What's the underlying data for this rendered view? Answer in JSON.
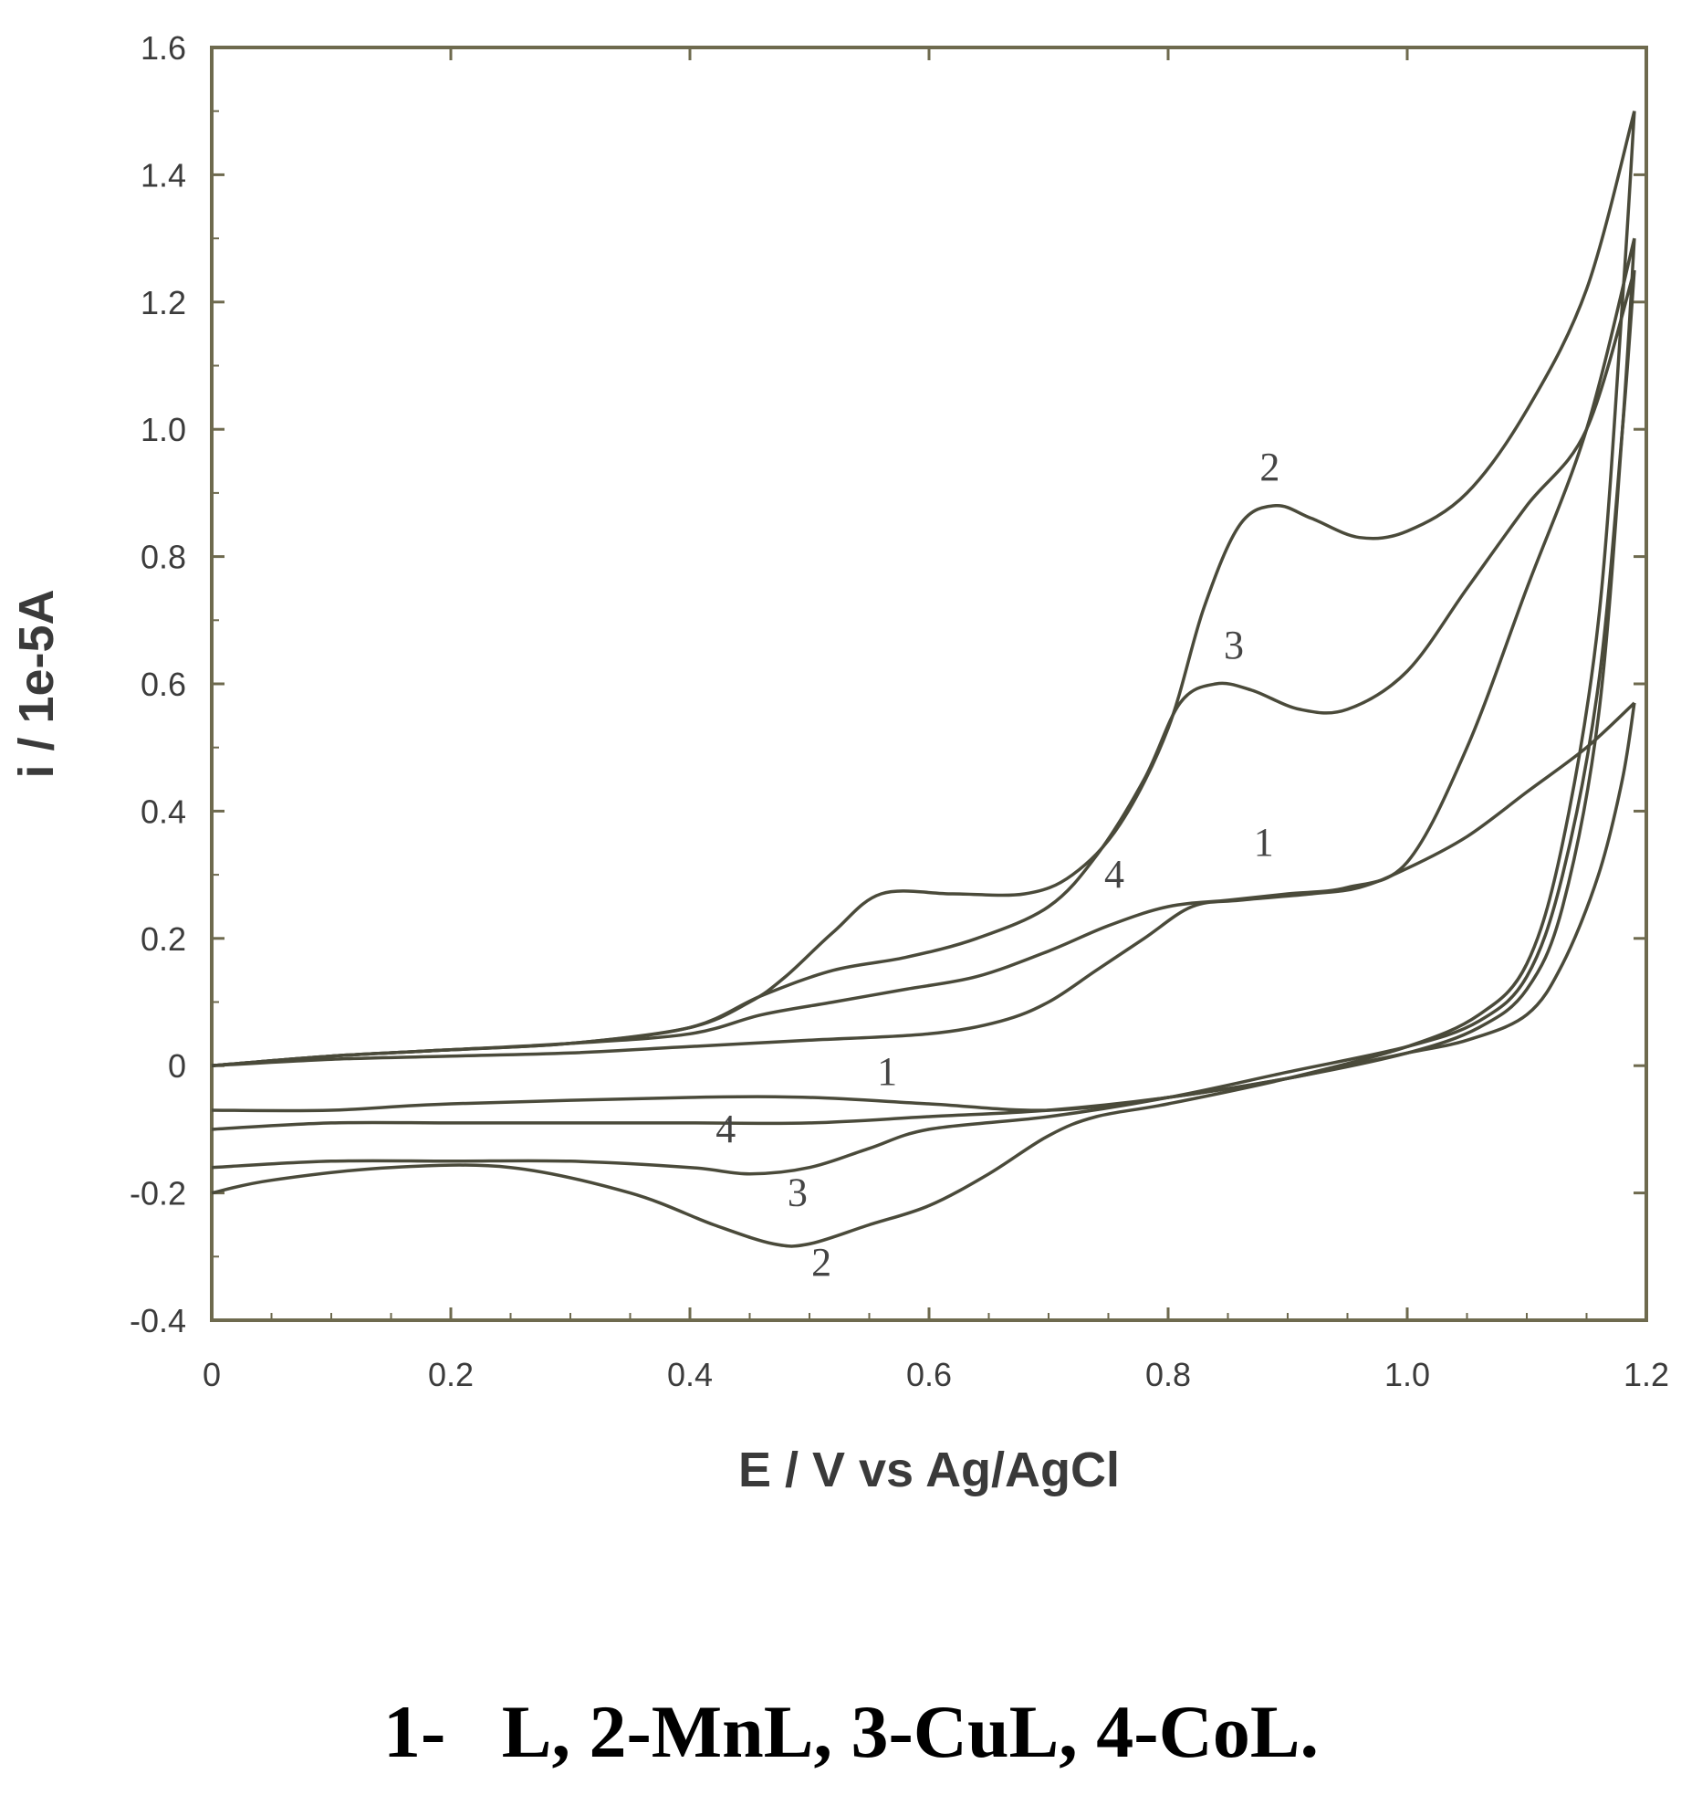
{
  "chart_data": {
    "type": "line",
    "title": "",
    "xlabel": "E  / V  vs Ag/AgCl",
    "ylabel": "i  / 1e-5A",
    "xlim": [
      0,
      1.2
    ],
    "ylim": [
      -0.4,
      1.6
    ],
    "xticks": [
      0,
      0.2,
      0.4,
      0.6,
      0.8,
      1.0,
      1.2
    ],
    "xtick_labels": [
      "0",
      "0.2",
      "0.4",
      "0.6",
      "0.8",
      "1.0",
      "1.2"
    ],
    "yticks": [
      -0.4,
      -0.2,
      0,
      0.2,
      0.4,
      0.6,
      0.8,
      1.0,
      1.2,
      1.4,
      1.6
    ],
    "ytick_labels": [
      "-0.4",
      "-0.2",
      "0",
      "0.2",
      "0.4",
      "0.6",
      "0.8",
      "1.0",
      "1.2",
      "1.4",
      "1.6"
    ],
    "grid": false,
    "line_color": "#4a4a3a",
    "frame_color": "#6e6a4e",
    "series": [
      {
        "name": "1",
        "forward": [
          [
            0,
            0
          ],
          [
            0.1,
            0.01
          ],
          [
            0.2,
            0.015
          ],
          [
            0.3,
            0.02
          ],
          [
            0.4,
            0.03
          ],
          [
            0.5,
            0.04
          ],
          [
            0.6,
            0.05
          ],
          [
            0.66,
            0.07
          ],
          [
            0.7,
            0.1
          ],
          [
            0.74,
            0.15
          ],
          [
            0.78,
            0.2
          ],
          [
            0.82,
            0.25
          ],
          [
            0.86,
            0.26
          ],
          [
            0.92,
            0.27
          ],
          [
            0.96,
            0.28
          ],
          [
            1.0,
            0.31
          ],
          [
            1.05,
            0.36
          ],
          [
            1.1,
            0.43
          ],
          [
            1.15,
            0.5
          ],
          [
            1.19,
            0.57
          ]
        ],
        "reverse": [
          [
            1.19,
            0.57
          ],
          [
            1.18,
            0.45
          ],
          [
            1.16,
            0.3
          ],
          [
            1.13,
            0.16
          ],
          [
            1.1,
            0.08
          ],
          [
            1.05,
            0.04
          ],
          [
            1.0,
            0.02
          ],
          [
            0.95,
            0
          ],
          [
            0.9,
            -0.02
          ],
          [
            0.8,
            -0.05
          ],
          [
            0.7,
            -0.07
          ],
          [
            0.6,
            -0.06
          ],
          [
            0.5,
            -0.05
          ],
          [
            0.4,
            -0.05
          ],
          [
            0.2,
            -0.06
          ],
          [
            0.1,
            -0.07
          ],
          [
            0,
            -0.07
          ]
        ]
      },
      {
        "name": "2",
        "forward": [
          [
            0,
            0
          ],
          [
            0.1,
            0.015
          ],
          [
            0.2,
            0.025
          ],
          [
            0.3,
            0.035
          ],
          [
            0.4,
            0.06
          ],
          [
            0.45,
            0.1
          ],
          [
            0.48,
            0.14
          ],
          [
            0.52,
            0.21
          ],
          [
            0.56,
            0.27
          ],
          [
            0.62,
            0.27
          ],
          [
            0.68,
            0.27
          ],
          [
            0.72,
            0.3
          ],
          [
            0.76,
            0.38
          ],
          [
            0.8,
            0.53
          ],
          [
            0.83,
            0.72
          ],
          [
            0.86,
            0.85
          ],
          [
            0.89,
            0.88
          ],
          [
            0.92,
            0.86
          ],
          [
            0.96,
            0.83
          ],
          [
            1.0,
            0.84
          ],
          [
            1.05,
            0.9
          ],
          [
            1.1,
            1.03
          ],
          [
            1.15,
            1.22
          ],
          [
            1.19,
            1.5
          ]
        ],
        "reverse": [
          [
            1.19,
            1.5
          ],
          [
            1.18,
            1.2
          ],
          [
            1.16,
            0.7
          ],
          [
            1.13,
            0.35
          ],
          [
            1.1,
            0.16
          ],
          [
            1.06,
            0.08
          ],
          [
            1.0,
            0.03
          ],
          [
            0.9,
            -0.02
          ],
          [
            0.8,
            -0.06
          ],
          [
            0.74,
            -0.08
          ],
          [
            0.7,
            -0.11
          ],
          [
            0.65,
            -0.17
          ],
          [
            0.6,
            -0.22
          ],
          [
            0.55,
            -0.25
          ],
          [
            0.5,
            -0.28
          ],
          [
            0.47,
            -0.28
          ],
          [
            0.42,
            -0.25
          ],
          [
            0.35,
            -0.2
          ],
          [
            0.25,
            -0.16
          ],
          [
            0.15,
            -0.16
          ],
          [
            0.05,
            -0.18
          ],
          [
            0,
            -0.2
          ]
        ]
      },
      {
        "name": "3",
        "forward": [
          [
            0,
            0
          ],
          [
            0.1,
            0.015
          ],
          [
            0.2,
            0.025
          ],
          [
            0.3,
            0.035
          ],
          [
            0.4,
            0.06
          ],
          [
            0.46,
            0.11
          ],
          [
            0.52,
            0.15
          ],
          [
            0.58,
            0.17
          ],
          [
            0.64,
            0.2
          ],
          [
            0.7,
            0.25
          ],
          [
            0.74,
            0.33
          ],
          [
            0.78,
            0.45
          ],
          [
            0.81,
            0.57
          ],
          [
            0.84,
            0.6
          ],
          [
            0.87,
            0.59
          ],
          [
            0.91,
            0.56
          ],
          [
            0.95,
            0.56
          ],
          [
            1.0,
            0.62
          ],
          [
            1.05,
            0.75
          ],
          [
            1.1,
            0.88
          ],
          [
            1.15,
            1.0
          ],
          [
            1.19,
            1.25
          ]
        ],
        "reverse": [
          [
            1.19,
            1.25
          ],
          [
            1.18,
            1.0
          ],
          [
            1.16,
            0.6
          ],
          [
            1.13,
            0.3
          ],
          [
            1.1,
            0.14
          ],
          [
            1.06,
            0.07
          ],
          [
            1.0,
            0.03
          ],
          [
            0.9,
            -0.01
          ],
          [
            0.8,
            -0.05
          ],
          [
            0.7,
            -0.08
          ],
          [
            0.6,
            -0.1
          ],
          [
            0.55,
            -0.13
          ],
          [
            0.5,
            -0.16
          ],
          [
            0.45,
            -0.17
          ],
          [
            0.4,
            -0.16
          ],
          [
            0.3,
            -0.15
          ],
          [
            0.2,
            -0.15
          ],
          [
            0.1,
            -0.15
          ],
          [
            0,
            -0.16
          ]
        ]
      },
      {
        "name": "4",
        "forward": [
          [
            0,
            0
          ],
          [
            0.1,
            0.015
          ],
          [
            0.2,
            0.025
          ],
          [
            0.3,
            0.035
          ],
          [
            0.4,
            0.05
          ],
          [
            0.46,
            0.08
          ],
          [
            0.52,
            0.1
          ],
          [
            0.58,
            0.12
          ],
          [
            0.64,
            0.14
          ],
          [
            0.7,
            0.18
          ],
          [
            0.75,
            0.22
          ],
          [
            0.8,
            0.25
          ],
          [
            0.85,
            0.26
          ],
          [
            0.9,
            0.27
          ],
          [
            0.95,
            0.28
          ],
          [
            1.0,
            0.32
          ],
          [
            1.05,
            0.5
          ],
          [
            1.1,
            0.75
          ],
          [
            1.15,
            1.0
          ],
          [
            1.19,
            1.3
          ]
        ],
        "reverse": [
          [
            1.19,
            1.3
          ],
          [
            1.18,
            1.0
          ],
          [
            1.16,
            0.55
          ],
          [
            1.13,
            0.25
          ],
          [
            1.1,
            0.12
          ],
          [
            1.06,
            0.06
          ],
          [
            1.0,
            0.02
          ],
          [
            0.9,
            -0.02
          ],
          [
            0.8,
            -0.05
          ],
          [
            0.7,
            -0.07
          ],
          [
            0.6,
            -0.08
          ],
          [
            0.5,
            -0.09
          ],
          [
            0.4,
            -0.09
          ],
          [
            0.3,
            -0.09
          ],
          [
            0.2,
            -0.09
          ],
          [
            0.1,
            -0.09
          ],
          [
            0,
            -0.1
          ]
        ]
      }
    ],
    "annotations": [
      {
        "text": "2",
        "x": 0.885,
        "y": 0.92
      },
      {
        "text": "3",
        "x": 0.855,
        "y": 0.64
      },
      {
        "text": "1",
        "x": 0.88,
        "y": 0.33
      },
      {
        "text": "4",
        "x": 0.755,
        "y": 0.28
      },
      {
        "text": "1",
        "x": 0.565,
        "y": -0.03
      },
      {
        "text": "4",
        "x": 0.43,
        "y": -0.12
      },
      {
        "text": "3",
        "x": 0.49,
        "y": -0.22
      },
      {
        "text": "2",
        "x": 0.51,
        "y": -0.33
      }
    ]
  },
  "caption": "1-   L, 2-MnL, 3-CuL, 4-CoL."
}
